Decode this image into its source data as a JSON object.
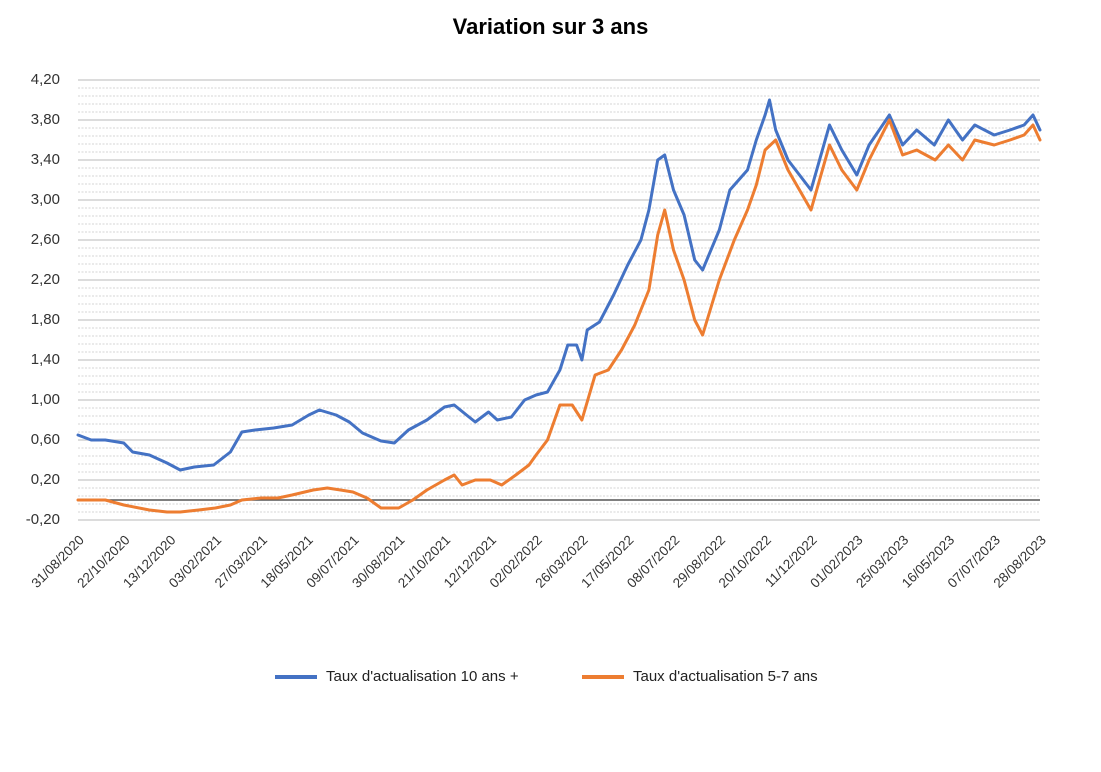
{
  "chart_data": {
    "type": "line",
    "title": "Variation sur 3 ans",
    "xlabel": "",
    "ylabel": "",
    "ylim": [
      -0.2,
      4.2
    ],
    "grid": true,
    "legend_position": "bottom",
    "y_tick_labels": [
      "-0,20",
      "0,20",
      "0,60",
      "1,00",
      "1,40",
      "1,80",
      "2,20",
      "2,60",
      "3,00",
      "3,40",
      "3,80",
      "4,20"
    ],
    "x_tick_labels": [
      "31/08/2020",
      "22/10/2020",
      "13/12/2020",
      "03/02/2021",
      "27/03/2021",
      "18/05/2021",
      "09/07/2021",
      "30/08/2021",
      "21/10/2021",
      "12/12/2021",
      "02/02/2022",
      "26/03/2022",
      "17/05/2022",
      "08/07/2022",
      "29/08/2022",
      "20/10/2022",
      "11/12/2022",
      "01/02/2023",
      "25/03/2023",
      "16/05/2023",
      "07/07/2023",
      "28/08/2023"
    ],
    "series": [
      {
        "name": "Taux d'actualisation 10 ans +",
        "color": "#4472c4",
        "points": [
          [
            "31/08/2020",
            0.65
          ],
          [
            "15/09/2020",
            0.6
          ],
          [
            "01/10/2020",
            0.6
          ],
          [
            "22/10/2020",
            0.57
          ],
          [
            "01/11/2020",
            0.48
          ],
          [
            "20/11/2020",
            0.45
          ],
          [
            "10/12/2020",
            0.37
          ],
          [
            "25/12/2020",
            0.3
          ],
          [
            "10/01/2021",
            0.33
          ],
          [
            "01/02/2021",
            0.35
          ],
          [
            "20/02/2021",
            0.48
          ],
          [
            "05/03/2021",
            0.68
          ],
          [
            "20/03/2021",
            0.7
          ],
          [
            "10/04/2021",
            0.72
          ],
          [
            "01/05/2021",
            0.75
          ],
          [
            "20/05/2021",
            0.85
          ],
          [
            "01/06/2021",
            0.9
          ],
          [
            "20/06/2021",
            0.85
          ],
          [
            "05/07/2021",
            0.78
          ],
          [
            "20/07/2021",
            0.67
          ],
          [
            "10/08/2021",
            0.59
          ],
          [
            "25/08/2021",
            0.57
          ],
          [
            "10/09/2021",
            0.7
          ],
          [
            "01/10/2021",
            0.8
          ],
          [
            "21/10/2021",
            0.93
          ],
          [
            "01/11/2021",
            0.95
          ],
          [
            "15/11/2021",
            0.85
          ],
          [
            "25/11/2021",
            0.78
          ],
          [
            "10/12/2021",
            0.88
          ],
          [
            "20/12/2021",
            0.8
          ],
          [
            "05/01/2022",
            0.83
          ],
          [
            "20/01/2022",
            1.0
          ],
          [
            "02/02/2022",
            1.05
          ],
          [
            "15/02/2022",
            1.08
          ],
          [
            "01/03/2022",
            1.3
          ],
          [
            "10/03/2022",
            1.55
          ],
          [
            "20/03/2022",
            1.55
          ],
          [
            "26/03/2022",
            1.4
          ],
          [
            "01/04/2022",
            1.7
          ],
          [
            "15/04/2022",
            1.78
          ],
          [
            "01/05/2022",
            2.05
          ],
          [
            "17/05/2022",
            2.35
          ],
          [
            "01/06/2022",
            2.6
          ],
          [
            "10/06/2022",
            2.9
          ],
          [
            "20/06/2022",
            3.4
          ],
          [
            "28/06/2022",
            3.45
          ],
          [
            "08/07/2022",
            3.1
          ],
          [
            "20/07/2022",
            2.85
          ],
          [
            "01/08/2022",
            2.4
          ],
          [
            "10/08/2022",
            2.3
          ],
          [
            "29/08/2022",
            2.7
          ],
          [
            "10/09/2022",
            3.1
          ],
          [
            "30/09/2022",
            3.3
          ],
          [
            "10/10/2022",
            3.6
          ],
          [
            "20/10/2022",
            3.85
          ],
          [
            "25/10/2022",
            4.0
          ],
          [
            "01/11/2022",
            3.7
          ],
          [
            "15/11/2022",
            3.4
          ],
          [
            "11/12/2022",
            3.1
          ],
          [
            "01/01/2023",
            3.75
          ],
          [
            "15/01/2023",
            3.5
          ],
          [
            "01/02/2023",
            3.25
          ],
          [
            "15/02/2023",
            3.55
          ],
          [
            "10/03/2023",
            3.85
          ],
          [
            "25/03/2023",
            3.55
          ],
          [
            "10/04/2023",
            3.7
          ],
          [
            "30/04/2023",
            3.55
          ],
          [
            "16/05/2023",
            3.8
          ],
          [
            "01/06/2023",
            3.6
          ],
          [
            "15/06/2023",
            3.75
          ],
          [
            "07/07/2023",
            3.65
          ],
          [
            "25/07/2023",
            3.7
          ],
          [
            "10/08/2023",
            3.75
          ],
          [
            "20/08/2023",
            3.85
          ],
          [
            "28/08/2023",
            3.7
          ]
        ]
      },
      {
        "name": "Taux d'actualisation 5-7 ans",
        "color": "#ed7d31",
        "points": [
          [
            "31/08/2020",
            0.0
          ],
          [
            "15/09/2020",
            0.0
          ],
          [
            "01/10/2020",
            0.0
          ],
          [
            "22/10/2020",
            -0.05
          ],
          [
            "20/11/2020",
            -0.1
          ],
          [
            "10/12/2020",
            -0.12
          ],
          [
            "25/12/2020",
            -0.12
          ],
          [
            "15/01/2021",
            -0.1
          ],
          [
            "03/02/2021",
            -0.08
          ],
          [
            "20/02/2021",
            -0.05
          ],
          [
            "05/03/2021",
            0.0
          ],
          [
            "27/03/2021",
            0.02
          ],
          [
            "15/04/2021",
            0.02
          ],
          [
            "01/05/2021",
            0.05
          ],
          [
            "25/05/2021",
            0.1
          ],
          [
            "10/06/2021",
            0.12
          ],
          [
            "25/06/2021",
            0.1
          ],
          [
            "09/07/2021",
            0.08
          ],
          [
            "25/07/2021",
            0.02
          ],
          [
            "10/08/2021",
            -0.08
          ],
          [
            "30/08/2021",
            -0.08
          ],
          [
            "15/09/2021",
            0.0
          ],
          [
            "01/10/2021",
            0.1
          ],
          [
            "21/10/2021",
            0.2
          ],
          [
            "01/11/2021",
            0.25
          ],
          [
            "10/11/2021",
            0.15
          ],
          [
            "25/11/2021",
            0.2
          ],
          [
            "12/12/2021",
            0.2
          ],
          [
            "25/12/2021",
            0.15
          ],
          [
            "10/01/2022",
            0.25
          ],
          [
            "25/01/2022",
            0.35
          ],
          [
            "02/02/2022",
            0.45
          ],
          [
            "15/02/2022",
            0.6
          ],
          [
            "01/03/2022",
            0.95
          ],
          [
            "15/03/2022",
            0.95
          ],
          [
            "26/03/2022",
            0.8
          ],
          [
            "10/04/2022",
            1.25
          ],
          [
            "25/04/2022",
            1.3
          ],
          [
            "10/05/2022",
            1.5
          ],
          [
            "25/05/2022",
            1.75
          ],
          [
            "10/06/2022",
            2.1
          ],
          [
            "20/06/2022",
            2.65
          ],
          [
            "28/06/2022",
            2.9
          ],
          [
            "08/07/2022",
            2.5
          ],
          [
            "20/07/2022",
            2.2
          ],
          [
            "01/08/2022",
            1.8
          ],
          [
            "10/08/2022",
            1.65
          ],
          [
            "29/08/2022",
            2.2
          ],
          [
            "15/09/2022",
            2.6
          ],
          [
            "30/09/2022",
            2.9
          ],
          [
            "10/10/2022",
            3.15
          ],
          [
            "20/10/2022",
            3.5
          ],
          [
            "01/11/2022",
            3.6
          ],
          [
            "15/11/2022",
            3.3
          ],
          [
            "11/12/2022",
            2.9
          ],
          [
            "01/01/2023",
            3.55
          ],
          [
            "15/01/2023",
            3.3
          ],
          [
            "01/02/2023",
            3.1
          ],
          [
            "15/02/2023",
            3.4
          ],
          [
            "10/03/2023",
            3.8
          ],
          [
            "25/03/2023",
            3.45
          ],
          [
            "10/04/2023",
            3.5
          ],
          [
            "01/05/2023",
            3.4
          ],
          [
            "16/05/2023",
            3.55
          ],
          [
            "01/06/2023",
            3.4
          ],
          [
            "15/06/2023",
            3.6
          ],
          [
            "07/07/2023",
            3.55
          ],
          [
            "25/07/2023",
            3.6
          ],
          [
            "10/08/2023",
            3.65
          ],
          [
            "20/08/2023",
            3.75
          ],
          [
            "28/08/2023",
            3.6
          ]
        ]
      }
    ]
  }
}
